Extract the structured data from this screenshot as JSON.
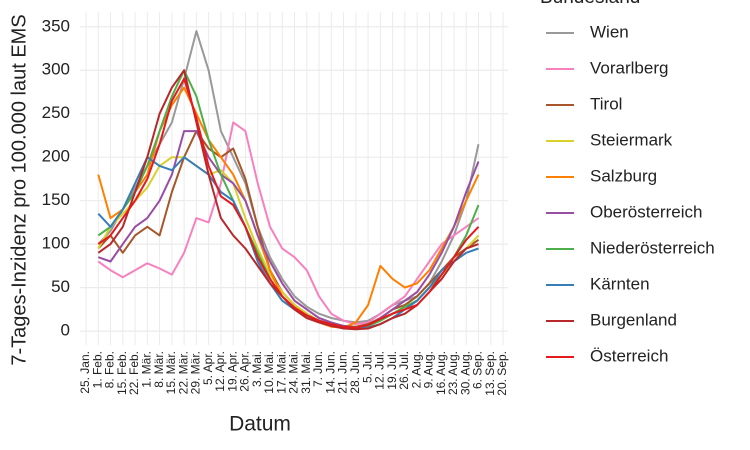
{
  "chart_data": {
    "type": "line",
    "x_label": "Datum",
    "y_label": "7-Tages-Inzidenz pro 100.000 laut EMS",
    "legend_title": "Bundesland",
    "legend": "right",
    "grid": true,
    "categories": [
      "25. Jan.",
      "1. Feb.",
      "8. Feb.",
      "15. Feb.",
      "22. Feb.",
      "1. Mär.",
      "8. Mär.",
      "15. Mär.",
      "22. Mär.",
      "29. Mär.",
      "5. Apr.",
      "12. Apr.",
      "19. Apr.",
      "26. Apr.",
      "3. Mai.",
      "10. Mai.",
      "17. Mai.",
      "24. Mai.",
      "31. Mai.",
      "7. Jun.",
      "14. Jun.",
      "21. Jun.",
      "28. Jun.",
      "5. Jul.",
      "12. Jul.",
      "19. Jul.",
      "26. Jul.",
      "2. Aug.",
      "9. Aug.",
      "16. Aug.",
      "23. Aug.",
      "30. Aug.",
      "6. Sep.",
      "13. Sep.",
      "20. Sep."
    ],
    "ylim": [
      -16,
      367
    ],
    "yticks": [
      0,
      50,
      100,
      150,
      200,
      250,
      300,
      350
    ],
    "series": [
      {
        "name": "Wien",
        "color": "#999999",
        "values": [
          null,
          100,
          115,
          140,
          165,
          190,
          215,
          240,
          290,
          345,
          300,
          230,
          200,
          170,
          120,
          85,
          60,
          40,
          28,
          20,
          15,
          12,
          10,
          12,
          20,
          30,
          35,
          40,
          55,
          80,
          110,
          150,
          215,
          null,
          null
        ]
      },
      {
        "name": "Vorarlberg",
        "color": "#f781bf",
        "values": [
          null,
          80,
          70,
          62,
          70,
          78,
          72,
          65,
          90,
          130,
          125,
          170,
          240,
          230,
          170,
          120,
          95,
          85,
          70,
          40,
          20,
          12,
          8,
          10,
          20,
          30,
          40,
          60,
          80,
          100,
          110,
          120,
          130,
          null,
          null
        ]
      },
      {
        "name": "Tirol",
        "color": "#a65628",
        "values": [
          null,
          95,
          110,
          90,
          110,
          120,
          110,
          160,
          200,
          230,
          210,
          200,
          210,
          175,
          120,
          70,
          45,
          30,
          20,
          12,
          8,
          6,
          5,
          8,
          15,
          25,
          30,
          40,
          55,
          70,
          85,
          95,
          105,
          null,
          null
        ]
      },
      {
        "name": "Steiermark",
        "color": "#d9d02c",
        "values": [
          null,
          95,
          120,
          135,
          150,
          165,
          190,
          200,
          200,
          190,
          180,
          185,
          170,
          130,
          95,
          65,
          45,
          30,
          20,
          12,
          8,
          5,
          4,
          6,
          12,
          20,
          28,
          35,
          50,
          65,
          80,
          95,
          110,
          null,
          null
        ]
      },
      {
        "name": "Salzburg",
        "color": "#ff7f00",
        "values": [
          null,
          180,
          130,
          140,
          160,
          180,
          230,
          260,
          280,
          250,
          220,
          200,
          180,
          150,
          110,
          70,
          40,
          25,
          15,
          10,
          5,
          4,
          10,
          30,
          75,
          60,
          50,
          55,
          70,
          95,
          120,
          150,
          180,
          null,
          null
        ]
      },
      {
        "name": "Oberösterreich",
        "color": "#984ea3",
        "values": [
          null,
          85,
          80,
          100,
          120,
          130,
          150,
          180,
          230,
          230,
          200,
          180,
          170,
          150,
          110,
          80,
          55,
          35,
          25,
          15,
          10,
          6,
          4,
          6,
          15,
          25,
          35,
          45,
          65,
          90,
          120,
          160,
          195,
          null,
          null
        ]
      },
      {
        "name": "Niederösterreich",
        "color": "#4daf4a",
        "values": [
          null,
          110,
          120,
          140,
          160,
          190,
          230,
          270,
          300,
          270,
          220,
          180,
          150,
          120,
          90,
          60,
          40,
          25,
          18,
          12,
          8,
          5,
          4,
          6,
          12,
          20,
          28,
          35,
          50,
          65,
          85,
          110,
          145,
          null,
          null
        ]
      },
      {
        "name": "Kärnten",
        "color": "#377eb8",
        "values": [
          null,
          135,
          120,
          140,
          170,
          200,
          190,
          185,
          200,
          190,
          180,
          160,
          150,
          120,
          80,
          55,
          35,
          25,
          18,
          12,
          8,
          5,
          3,
          4,
          8,
          15,
          25,
          35,
          50,
          70,
          80,
          90,
          95,
          null,
          null
        ]
      },
      {
        "name": "Burgenland",
        "color": "#b8282b",
        "values": [
          null,
          90,
          100,
          120,
          160,
          200,
          250,
          280,
          300,
          240,
          180,
          130,
          110,
          95,
          75,
          55,
          40,
          25,
          15,
          10,
          6,
          3,
          2,
          3,
          8,
          15,
          20,
          30,
          45,
          60,
          80,
          95,
          100,
          null,
          null
        ]
      },
      {
        "name": "Österreich",
        "color": "#e41a1c",
        "values": [
          null,
          100,
          110,
          130,
          150,
          175,
          215,
          265,
          290,
          245,
          190,
          155,
          145,
          120,
          85,
          60,
          40,
          27,
          18,
          12,
          8,
          5,
          4,
          7,
          14,
          20,
          25,
          30,
          45,
          65,
          85,
          105,
          120,
          null,
          null
        ]
      }
    ]
  }
}
